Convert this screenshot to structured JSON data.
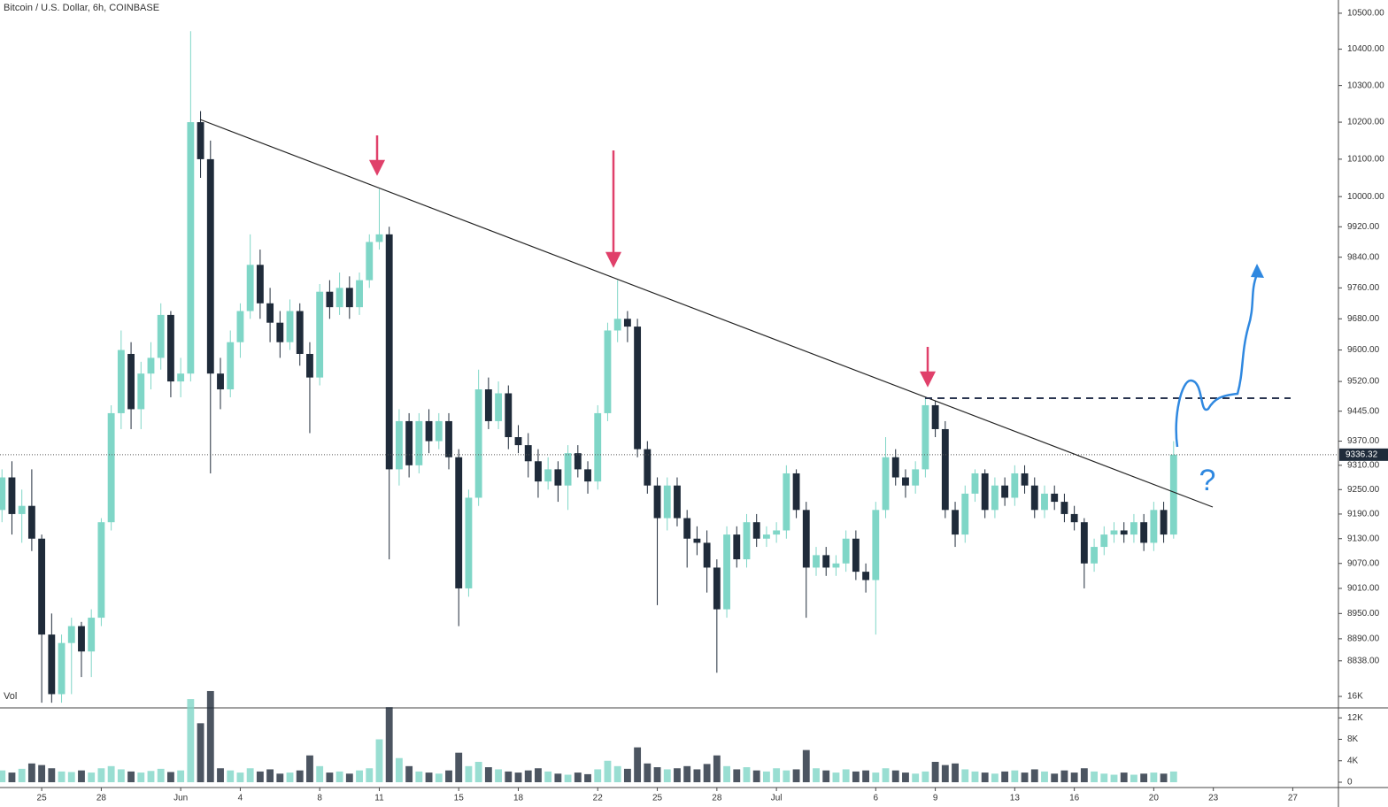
{
  "chart_data": {
    "type": "candlestick",
    "title": "Bitcoin / U.S. Dollar, 6h, COINBASE",
    "volume_label": "Vol",
    "annotation": "?",
    "log_scale": true,
    "up_color": "#7fd6c7",
    "down_color": "#1f2b3a",
    "xlim": [
      -2.1,
      65.3
    ],
    "xticks": [
      {
        "value": 0,
        "label": "25"
      },
      {
        "value": 3,
        "label": "28"
      },
      {
        "value": 7,
        "label": "Jun"
      },
      {
        "value": 10,
        "label": "4"
      },
      {
        "value": 14,
        "label": "8"
      },
      {
        "value": 17,
        "label": "11"
      },
      {
        "value": 21,
        "label": "15"
      },
      {
        "value": 24,
        "label": "18"
      },
      {
        "value": 28,
        "label": "22"
      },
      {
        "value": 31,
        "label": "25"
      },
      {
        "value": 34,
        "label": "28"
      },
      {
        "value": 37,
        "label": "Jul"
      },
      {
        "value": 42,
        "label": "6"
      },
      {
        "value": 45,
        "label": "9"
      },
      {
        "value": 49,
        "label": "13"
      },
      {
        "value": 52,
        "label": "16"
      },
      {
        "value": 56,
        "label": "20"
      },
      {
        "value": 59,
        "label": "23"
      },
      {
        "value": 63,
        "label": "27"
      }
    ],
    "ylim": [
      8728,
      10537
    ],
    "yticks": [
      {
        "value": 10500,
        "label": "10500.00"
      },
      {
        "value": 10400,
        "label": "10400.00"
      },
      {
        "value": 10300,
        "label": "10300.00"
      },
      {
        "value": 10200,
        "label": "10200.00"
      },
      {
        "value": 10100,
        "label": "10100.00"
      },
      {
        "value": 10000,
        "label": "10000.00"
      },
      {
        "value": 9920,
        "label": "9920.00"
      },
      {
        "value": 9840,
        "label": "9840.00"
      },
      {
        "value": 9760,
        "label": "9760.00"
      },
      {
        "value": 9680,
        "label": "9680.00"
      },
      {
        "value": 9600,
        "label": "9600.00"
      },
      {
        "value": 9520,
        "label": "9520.00"
      },
      {
        "value": 9445,
        "label": "9445.00"
      },
      {
        "value": 9370,
        "label": "9370.00"
      },
      {
        "value": 9310,
        "label": "9310.00"
      },
      {
        "value": 9250,
        "label": "9250.00"
      },
      {
        "value": 9190,
        "label": "9190.00"
      },
      {
        "value": 9130,
        "label": "9130.00"
      },
      {
        "value": 9070,
        "label": "9070.00"
      },
      {
        "value": 9010,
        "label": "9010.00"
      },
      {
        "value": 8950,
        "label": "8950.00"
      },
      {
        "value": 8890,
        "label": "8890.00"
      },
      {
        "value": 8838,
        "label": "8838.00"
      }
    ],
    "last_price": 9336.32,
    "vlim": [
      -990,
      13860
    ],
    "vticks": [
      {
        "value": 16000,
        "label": "16K"
      },
      {
        "value": 12000,
        "label": "12K"
      },
      {
        "value": 8000,
        "label": "8K"
      },
      {
        "value": 4000,
        "label": "4K"
      },
      0
    ],
    "x": [
      -2,
      -1.5,
      -1,
      -0.5,
      0,
      0.5,
      1,
      1.5,
      2,
      2.5,
      3,
      3.5,
      4,
      4.5,
      5,
      5.5,
      6,
      6.5,
      7,
      7.5,
      8,
      8.5,
      9,
      9.5,
      10,
      10.5,
      11,
      11.5,
      12,
      12.5,
      13,
      13.5,
      14,
      14.5,
      15,
      15.5,
      16,
      16.5,
      17,
      17.5,
      18,
      18.5,
      19,
      19.5,
      20,
      20.5,
      21,
      21.5,
      22,
      22.5,
      23,
      23.5,
      24,
      24.5,
      25,
      25.5,
      26,
      26.5,
      27,
      27.5,
      28,
      28.5,
      29,
      29.5,
      30,
      30.5,
      31,
      31.5,
      32,
      32.5,
      33,
      33.5,
      34,
      34.5,
      35,
      35.5,
      36,
      36.5,
      37,
      37.5,
      38,
      38.5,
      39,
      39.5,
      40,
      40.5,
      41,
      41.5,
      42,
      42.5,
      43,
      43.5,
      44,
      44.5,
      45,
      45.5,
      46,
      46.5,
      47,
      47.5,
      48,
      48.5,
      49,
      49.5,
      50,
      50.5,
      51,
      51.5,
      52,
      52.5,
      53,
      53.5,
      54,
      54.5,
      55,
      55.5,
      56,
      56.5,
      57
    ],
    "ohlc": [
      [
        9200,
        9300,
        9170,
        9280
      ],
      [
        9280,
        9320,
        9140,
        9190
      ],
      [
        9190,
        9250,
        9120,
        9210
      ],
      [
        9210,
        9300,
        9100,
        9130
      ],
      [
        9130,
        9140,
        8740,
        8900
      ],
      [
        8900,
        8950,
        8740,
        8760
      ],
      [
        8760,
        8900,
        8740,
        8880
      ],
      [
        8880,
        8940,
        8760,
        8920
      ],
      [
        8920,
        8930,
        8800,
        8860
      ],
      [
        8860,
        8960,
        8800,
        8940
      ],
      [
        8940,
        9180,
        8920,
        9170
      ],
      [
        9170,
        9460,
        9150,
        9440
      ],
      [
        9440,
        9650,
        9400,
        9600
      ],
      [
        9590,
        9620,
        9400,
        9450
      ],
      [
        9450,
        9570,
        9400,
        9540
      ],
      [
        9540,
        9620,
        9500,
        9580
      ],
      [
        9580,
        9720,
        9550,
        9690
      ],
      [
        9690,
        9700,
        9480,
        9520
      ],
      [
        9520,
        9580,
        9480,
        9540
      ],
      [
        9540,
        10450,
        9520,
        10200
      ],
      [
        10200,
        10230,
        10050,
        10100
      ],
      [
        10100,
        10150,
        9290,
        9540
      ],
      [
        9540,
        9580,
        9450,
        9500
      ],
      [
        9500,
        9650,
        9480,
        9620
      ],
      [
        9620,
        9720,
        9580,
        9700
      ],
      [
        9700,
        9900,
        9680,
        9820
      ],
      [
        9820,
        9860,
        9680,
        9720
      ],
      [
        9720,
        9760,
        9620,
        9670
      ],
      [
        9670,
        9700,
        9580,
        9620
      ],
      [
        9620,
        9730,
        9600,
        9700
      ],
      [
        9700,
        9720,
        9560,
        9590
      ],
      [
        9590,
        9620,
        9390,
        9530
      ],
      [
        9530,
        9770,
        9510,
        9750
      ],
      [
        9750,
        9780,
        9680,
        9710
      ],
      [
        9710,
        9800,
        9690,
        9760
      ],
      [
        9760,
        9790,
        9680,
        9710
      ],
      [
        9710,
        9800,
        9690,
        9780
      ],
      [
        9780,
        9900,
        9760,
        9880
      ],
      [
        9880,
        10020,
        9860,
        9900
      ],
      [
        9900,
        9920,
        9080,
        9300
      ],
      [
        9300,
        9450,
        9260,
        9420
      ],
      [
        9420,
        9440,
        9280,
        9310
      ],
      [
        9310,
        9440,
        9290,
        9420
      ],
      [
        9420,
        9450,
        9340,
        9370
      ],
      [
        9370,
        9440,
        9350,
        9420
      ],
      [
        9420,
        9440,
        9300,
        9330
      ],
      [
        9330,
        9350,
        8920,
        9010
      ],
      [
        9010,
        9250,
        8990,
        9230
      ],
      [
        9230,
        9550,
        9210,
        9500
      ],
      [
        9500,
        9530,
        9400,
        9420
      ],
      [
        9420,
        9520,
        9400,
        9490
      ],
      [
        9490,
        9510,
        9350,
        9380
      ],
      [
        9380,
        9410,
        9340,
        9360
      ],
      [
        9360,
        9390,
        9280,
        9320
      ],
      [
        9320,
        9350,
        9230,
        9270
      ],
      [
        9270,
        9330,
        9250,
        9300
      ],
      [
        9300,
        9320,
        9220,
        9260
      ],
      [
        9260,
        9360,
        9200,
        9340
      ],
      [
        9340,
        9360,
        9280,
        9300
      ],
      [
        9300,
        9320,
        9240,
        9270
      ],
      [
        9270,
        9460,
        9250,
        9440
      ],
      [
        9440,
        9670,
        9420,
        9650
      ],
      [
        9650,
        9780,
        9620,
        9680
      ],
      [
        9680,
        9700,
        9620,
        9660
      ],
      [
        9660,
        9680,
        9330,
        9350
      ],
      [
        9350,
        9370,
        9240,
        9260
      ],
      [
        9260,
        9280,
        8970,
        9180
      ],
      [
        9180,
        9280,
        9150,
        9260
      ],
      [
        9260,
        9280,
        9160,
        9180
      ],
      [
        9180,
        9200,
        9060,
        9130
      ],
      [
        9130,
        9160,
        9090,
        9120
      ],
      [
        9120,
        9150,
        9000,
        9060
      ],
      [
        9060,
        9080,
        8810,
        8960
      ],
      [
        8960,
        9160,
        8940,
        9140
      ],
      [
        9140,
        9160,
        9060,
        9080
      ],
      [
        9080,
        9190,
        9060,
        9170
      ],
      [
        9170,
        9190,
        9110,
        9130
      ],
      [
        9130,
        9160,
        9110,
        9140
      ],
      [
        9140,
        9170,
        9120,
        9150
      ],
      [
        9150,
        9310,
        9130,
        9290
      ],
      [
        9290,
        9300,
        9180,
        9200
      ],
      [
        9200,
        9220,
        8940,
        9060
      ],
      [
        9060,
        9110,
        9040,
        9090
      ],
      [
        9090,
        9110,
        9040,
        9060
      ],
      [
        9060,
        9090,
        9040,
        9070
      ],
      [
        9070,
        9150,
        9050,
        9130
      ],
      [
        9130,
        9150,
        9030,
        9050
      ],
      [
        9050,
        9070,
        9000,
        9030
      ],
      [
        9030,
        9220,
        8900,
        9200
      ],
      [
        9200,
        9380,
        9180,
        9330
      ],
      [
        9330,
        9350,
        9260,
        9280
      ],
      [
        9280,
        9300,
        9230,
        9260
      ],
      [
        9260,
        9320,
        9240,
        9300
      ],
      [
        9300,
        9480,
        9280,
        9460
      ],
      [
        9460,
        9470,
        9380,
        9400
      ],
      [
        9400,
        9420,
        9180,
        9200
      ],
      [
        9200,
        9220,
        9110,
        9140
      ],
      [
        9140,
        9260,
        9120,
        9240
      ],
      [
        9240,
        9300,
        9220,
        9290
      ],
      [
        9290,
        9300,
        9180,
        9200
      ],
      [
        9200,
        9280,
        9180,
        9260
      ],
      [
        9260,
        9280,
        9210,
        9230
      ],
      [
        9230,
        9310,
        9210,
        9290
      ],
      [
        9290,
        9310,
        9240,
        9260
      ],
      [
        9260,
        9280,
        9180,
        9200
      ],
      [
        9200,
        9260,
        9180,
        9240
      ],
      [
        9240,
        9260,
        9200,
        9220
      ],
      [
        9220,
        9240,
        9170,
        9190
      ],
      [
        9190,
        9210,
        9150,
        9170
      ],
      [
        9170,
        9180,
        9010,
        9070
      ],
      [
        9070,
        9130,
        9050,
        9110
      ],
      [
        9110,
        9160,
        9090,
        9140
      ],
      [
        9140,
        9170,
        9120,
        9150
      ],
      [
        9150,
        9170,
        9120,
        9140
      ],
      [
        9140,
        9190,
        9120,
        9170
      ],
      [
        9170,
        9190,
        9100,
        9120
      ],
      [
        9120,
        9220,
        9100,
        9200
      ],
      [
        9200,
        9220,
        9120,
        9140
      ],
      [
        9140,
        9370,
        9130,
        9336.32
      ]
    ],
    "volume": [
      2200,
      1800,
      2500,
      3500,
      3200,
      2600,
      2000,
      1900,
      2200,
      1800,
      2600,
      3000,
      2400,
      2000,
      1800,
      2100,
      2500,
      1900,
      2200,
      15500,
      11000,
      17000,
      2600,
      2200,
      1800,
      2600,
      2000,
      2400,
      1600,
      1800,
      2200,
      5000,
      3000,
      1800,
      2000,
      1600,
      2200,
      2600,
      8000,
      14000,
      4500,
      3000,
      2000,
      1800,
      1600,
      2200,
      5500,
      3000,
      3800,
      2800,
      2400,
      2000,
      1800,
      2200,
      2600,
      2000,
      1600,
      1400,
      1800,
      1500,
      2400,
      4000,
      3000,
      2500,
      6500,
      3500,
      2800,
      2400,
      2600,
      3000,
      2400,
      3400,
      5000,
      3000,
      2400,
      2800,
      2200,
      2000,
      2600,
      2200,
      2400,
      6000,
      2600,
      2200,
      1800,
      2400,
      2000,
      2200,
      1800,
      2600,
      2200,
      1800,
      1600,
      2000,
      3800,
      3200,
      3500,
      2400,
      2000,
      1800,
      1600,
      2000,
      2200,
      1800,
      2400,
      2000,
      1600,
      2200,
      1800,
      2600,
      2000,
      1600,
      1400,
      1800,
      1400,
      1600,
      1800,
      1600,
      2000
    ]
  }
}
